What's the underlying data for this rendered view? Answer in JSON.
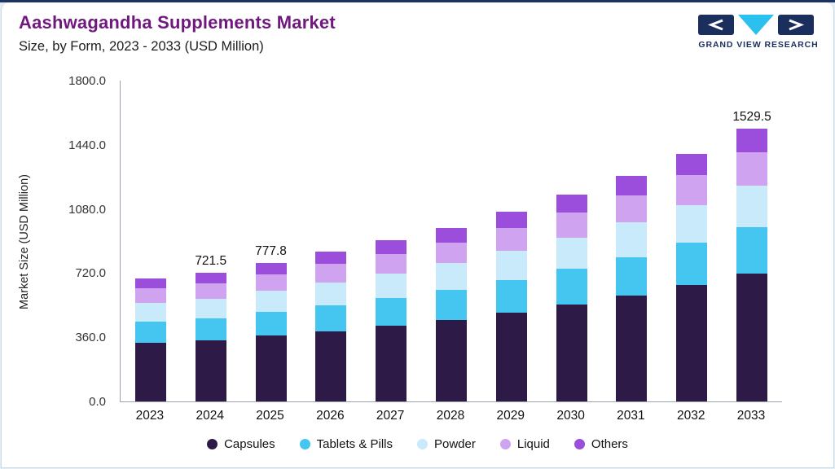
{
  "header": {
    "title": "Aashwagandha Supplements Market",
    "subtitle": "Size, by Form, 2023 - 2033 (USD Million)",
    "brand": "GRAND VIEW RESEARCH"
  },
  "brand_colors": {
    "navy": "#1b2f5e",
    "cyan": "#2bc1ee",
    "title_purple": "#70187e"
  },
  "chart_data": {
    "type": "bar",
    "stacked": true,
    "title": "Aashwagandha Supplements Market Size, by Form, 2023 - 2033 (USD Million)",
    "ylabel": "Market Size (USD Million)",
    "xlabel": "",
    "ylim": [
      0,
      1800
    ],
    "grid": false,
    "legend_position": "bottom",
    "yticks": [
      {
        "value": 0,
        "label": "0.0"
      },
      {
        "value": 360,
        "label": "360.0"
      },
      {
        "value": 720,
        "label": "720.0"
      },
      {
        "value": 1080,
        "label": "1080.0"
      },
      {
        "value": 1440,
        "label": "1440.0"
      },
      {
        "value": 1800,
        "label": "1800.0"
      }
    ],
    "categories": [
      "2023",
      "2024",
      "2025",
      "2026",
      "2027",
      "2028",
      "2029",
      "2030",
      "2031",
      "2032",
      "2033"
    ],
    "series": [
      {
        "name": "Capsules",
        "color": "#2e1a47",
        "values": [
          330.0,
          342.0,
          368.0,
          395.0,
          425.0,
          458.0,
          500.0,
          545.0,
          594.0,
          652.0,
          717.0
        ]
      },
      {
        "name": "Tablets & Pills",
        "color": "#45c6f0",
        "values": [
          118.0,
          124.0,
          134.0,
          145.0,
          156.0,
          168.0,
          183.0,
          199.0,
          217.0,
          238.0,
          262.0
        ]
      },
      {
        "name": "Powder",
        "color": "#c9eafb",
        "values": [
          105.0,
          110.0,
          118.0,
          128.0,
          138.0,
          148.5,
          162.0,
          176.0,
          192.0,
          211.0,
          232.5
        ]
      },
      {
        "name": "Liquid",
        "color": "#cfa3f0",
        "values": [
          82.0,
          87.0,
          94.0,
          102.0,
          110.0,
          118.5,
          130.0,
          141.0,
          154.0,
          169.0,
          186.0
        ]
      },
      {
        "name": "Others",
        "color": "#9b4ddb",
        "values": [
          55.0,
          58.5,
          63.8,
          70.0,
          76.0,
          82.0,
          90.0,
          99.0,
          108.0,
          120.0,
          132.0
        ]
      }
    ],
    "totals": [
      690.0,
      721.5,
      777.8,
      840.0,
      905.0,
      975.0,
      1065.0,
      1160.0,
      1265.0,
      1390.0,
      1529.5
    ],
    "bar_labels": [
      "",
      "721.5",
      "777.8",
      "",
      "",
      "",
      "",
      "",
      "",
      "",
      "1529.5"
    ]
  }
}
